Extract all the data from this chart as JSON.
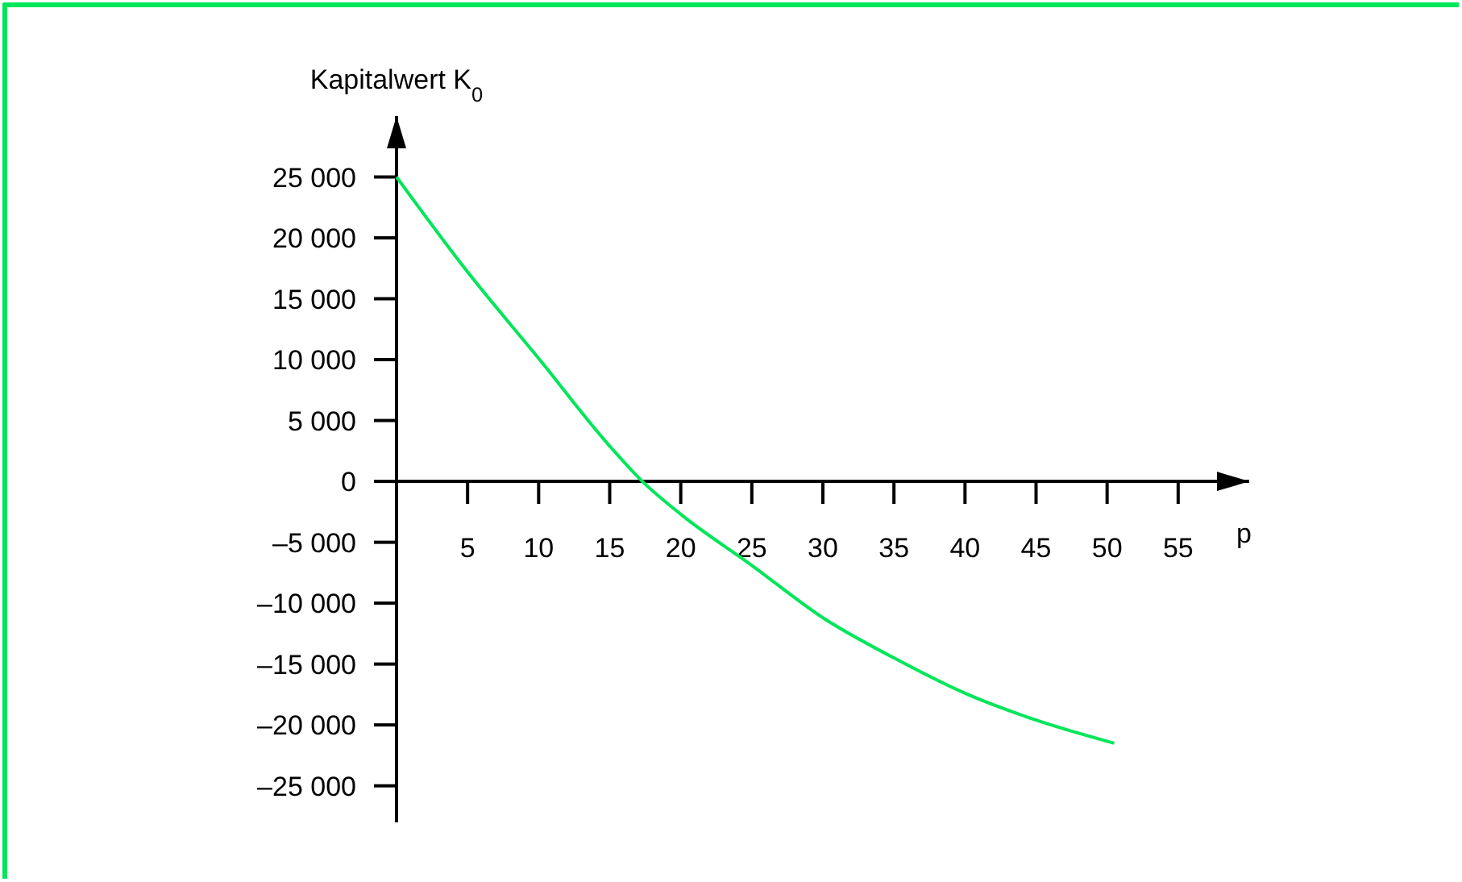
{
  "chart_data": {
    "type": "line",
    "xlabel": "p",
    "ylabel": "Kapitalwert K$_{0}$",
    "xlim": [
      0,
      60
    ],
    "xticks": [
      5,
      10,
      15,
      20,
      25,
      30,
      35,
      40,
      45,
      50,
      55
    ],
    "ylim": [
      -28000,
      30000
    ],
    "yticks": [
      {
        "value": 25000,
        "label": "25 000"
      },
      {
        "value": 20000,
        "label": "20 000"
      },
      {
        "value": 15000,
        "label": "15 000"
      },
      {
        "value": 10000,
        "label": "10 000"
      },
      {
        "value": 5000,
        "label": "5 000"
      },
      0,
      {
        "value": -5000,
        "label": "–5 000"
      },
      {
        "value": -10000,
        "label": "–10 000"
      },
      {
        "value": -15000,
        "label": "–15 000"
      },
      {
        "value": -20000,
        "label": "–20 000"
      },
      {
        "value": -25000,
        "label": "–25 000"
      }
    ],
    "grid": false,
    "series": [
      {
        "color": "#00e65a",
        "x": [
          0,
          5,
          10,
          15,
          17.3,
          20,
          25,
          30,
          35,
          40,
          45,
          50.5
        ],
        "values": [
          25000,
          17200,
          10100,
          2900,
          0,
          -2700,
          -6900,
          -11200,
          -14500,
          -17400,
          -19600,
          -21500
        ]
      }
    ]
  }
}
